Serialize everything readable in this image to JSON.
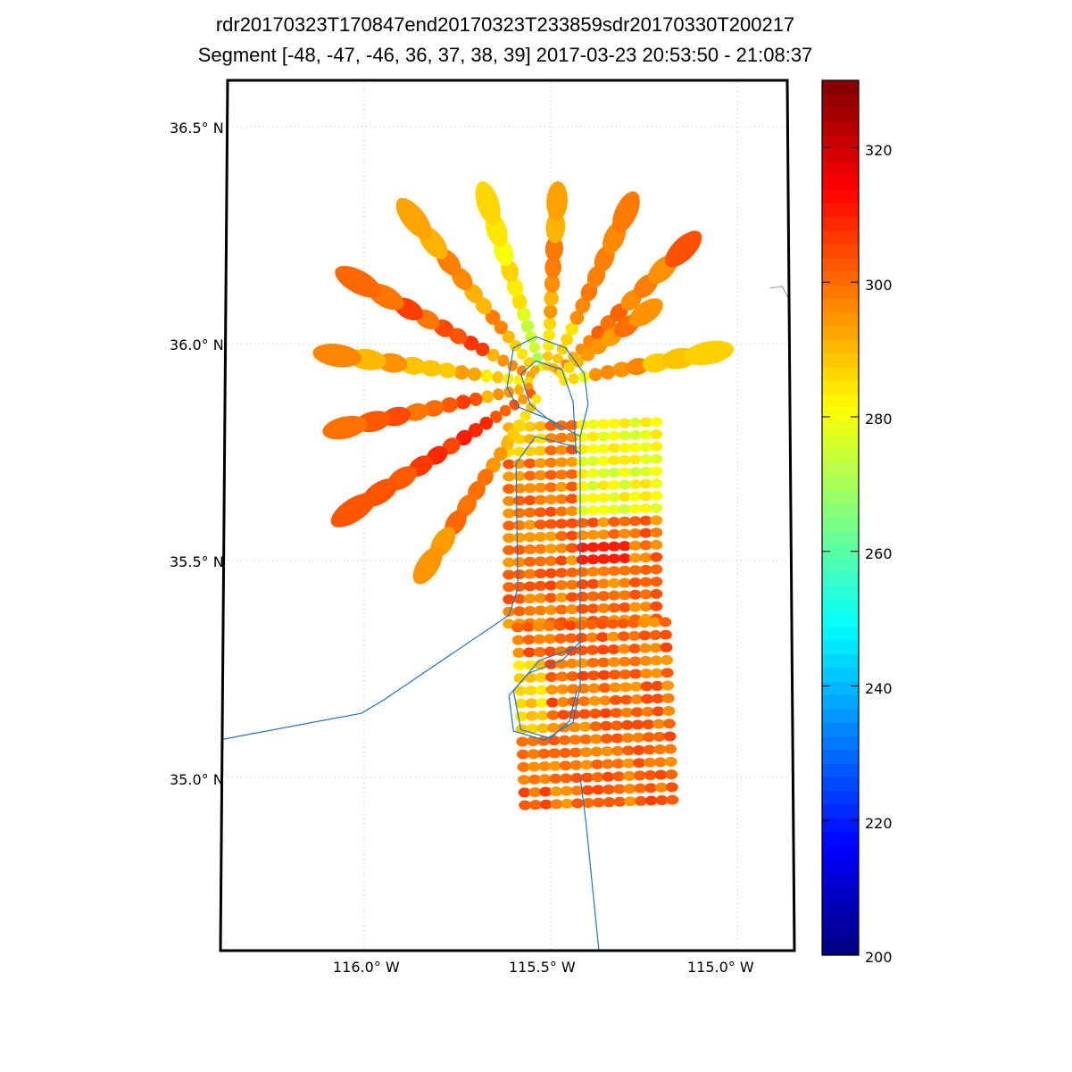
{
  "chart_data": {
    "type": "scatter",
    "title": "rdr20170323T170847end20170323T233859sdr20170330T200217",
    "subtitle": "Segment [-48, -47, -46, 36, 37, 38, 39] 2017-03-23 20:53:50 - 21:08:37",
    "xlabel": "",
    "ylabel": "",
    "xlim": [
      -116.385,
      -114.847
    ],
    "ylim": [
      34.602,
      36.607
    ],
    "grid": true,
    "x_ticks": [
      {
        "value": -116.0,
        "label": "116.0° W"
      },
      {
        "value": -115.5,
        "label": "115.5° W"
      },
      {
        "value": -115.0,
        "label": "115.0° W"
      }
    ],
    "y_ticks": [
      {
        "value": 36.5,
        "label": "36.5° N"
      },
      {
        "value": 36.0,
        "label": "36.0° N"
      },
      {
        "value": 35.5,
        "label": "35.5° N"
      },
      {
        "value": 35.0,
        "label": "35.0° N"
      }
    ],
    "colorbar": {
      "colormap": "jet",
      "range": [
        200,
        330
      ],
      "ticks": [
        "200",
        "220",
        "240",
        "260",
        "280",
        "300",
        "320"
      ]
    },
    "spoke_center": [
      -115.512,
      35.907
    ],
    "spokes": [
      {
        "end": [
          -115.682,
          36.36
        ],
        "value": 282
      },
      {
        "end": [
          -115.478,
          36.401
        ],
        "value": 295
      },
      {
        "end": [
          -115.278,
          36.34
        ],
        "value": 297
      },
      {
        "end": [
          -115.122,
          36.237
        ],
        "value": 300
      },
      {
        "end": [
          -115.194,
          36.103
        ],
        "value": 297
      },
      {
        "end": [
          -115.074,
          35.979
        ],
        "value": 292
      },
      {
        "end": [
          -115.876,
          36.298
        ],
        "value": 295
      },
      {
        "end": [
          -116.019,
          36.144
        ],
        "value": 302
      },
      {
        "end": [
          -116.091,
          35.975
        ],
        "value": 292
      },
      {
        "end": [
          -116.096,
          35.798
        ],
        "value": 303
      },
      {
        "end": [
          -116.031,
          35.615
        ],
        "value": 307
      },
      {
        "end": [
          -115.871,
          35.434
        ],
        "value": 297
      }
    ],
    "grids": [
      {
        "lon": [
          -115.612,
          -115.217
        ],
        "lat": [
          35.807,
          35.354
        ],
        "rows": 17,
        "cols": 15,
        "value": 299,
        "warm_patch_value": 280
      },
      {
        "lon": [
          -115.588,
          -115.193
        ],
        "lat": [
          35.346,
          34.936
        ],
        "rows": 15,
        "cols": 15,
        "value": 300,
        "warm_patch_value": 283
      }
    ],
    "flight_track": [
      [
        [
          -116.385,
          35.087
        ],
        [
          -116.007,
          35.148
        ],
        [
          -115.947,
          35.179
        ],
        [
          -115.612,
          35.374
        ],
        [
          -115.588,
          35.436
        ],
        [
          -115.593,
          35.724
        ],
        [
          -115.541,
          35.786
        ],
        [
          -115.445,
          35.765
        ],
        [
          -115.421,
          35.745
        ],
        [
          -115.421,
          35.313
        ],
        [
          -115.469,
          35.27
        ],
        [
          -115.56,
          35.24
        ],
        [
          -115.612,
          35.189
        ],
        [
          -115.6,
          35.107
        ],
        [
          -115.517,
          35.086
        ],
        [
          -115.44,
          35.127
        ],
        [
          -115.421,
          35.21
        ],
        [
          -115.421,
          35.786
        ]
      ],
      [
        [
          -115.421,
          35.786
        ],
        [
          -115.5,
          35.824
        ],
        [
          -115.59,
          35.855
        ],
        [
          -115.617,
          35.9
        ],
        [
          -115.6,
          35.99
        ],
        [
          -115.54,
          36.016
        ],
        [
          -115.46,
          35.99
        ],
        [
          -115.41,
          35.93
        ],
        [
          -115.4,
          35.86
        ],
        [
          -115.421,
          35.786
        ]
      ],
      [
        [
          -115.432,
          35.745
        ],
        [
          -115.44,
          35.866
        ],
        [
          -115.47,
          35.94
        ],
        [
          -115.54,
          35.96
        ],
        [
          -115.58,
          35.93
        ],
        [
          -115.555,
          35.86
        ],
        [
          -115.47,
          35.8
        ]
      ],
      [
        [
          -115.43,
          35.3
        ],
        [
          -115.53,
          35.27
        ],
        [
          -115.6,
          35.2
        ],
        [
          -115.58,
          35.11
        ],
        [
          -115.5,
          35.09
        ],
        [
          -115.45,
          35.13
        ],
        [
          -115.43,
          35.2
        ]
      ],
      [
        [
          -115.421,
          35.0
        ],
        [
          -115.406,
          34.9
        ],
        [
          -115.371,
          34.602
        ]
      ]
    ],
    "coastline": [
      [
        -114.912,
        36.128
      ],
      [
        -114.88,
        36.132
      ],
      [
        -114.86,
        36.1
      ],
      [
        -114.855,
        36.07
      ]
    ]
  }
}
